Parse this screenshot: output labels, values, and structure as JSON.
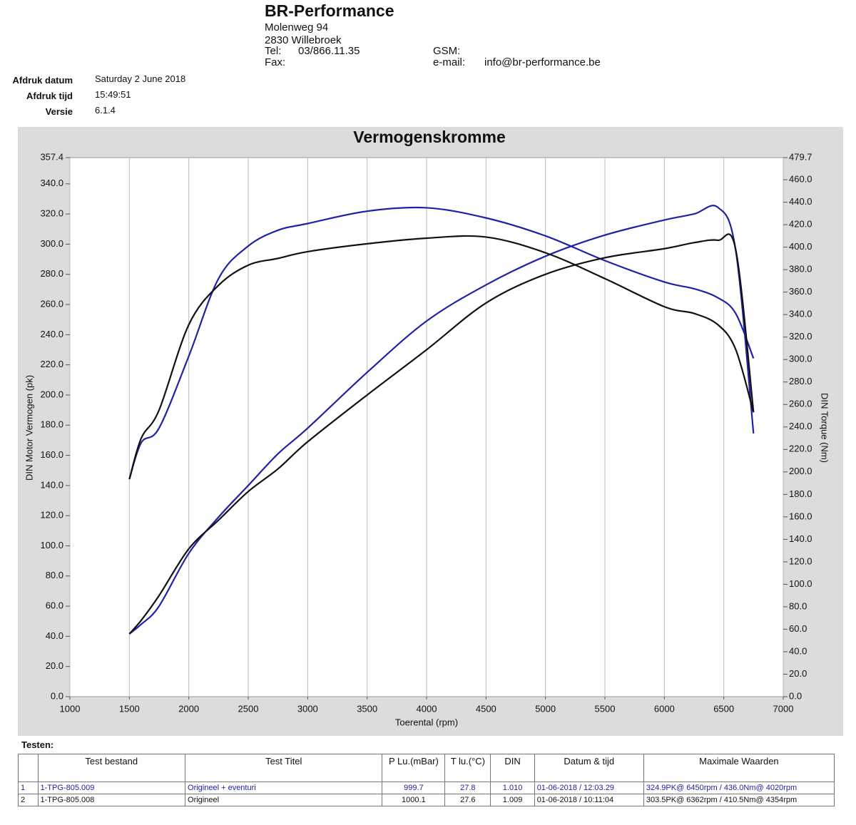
{
  "header": {
    "company": "BR-Performance",
    "street": "Molenweg 94",
    "city": "2830 Willebroek",
    "tel_label": "Tel:",
    "tel": "03/866.11.35",
    "fax_label": "Fax:",
    "gsm_label": "GSM:",
    "email_label": "e-mail:",
    "email": "info@br-performance.be"
  },
  "meta": {
    "rows": [
      [
        "Afdruk datum",
        "Saturday 2 June 2018"
      ],
      [
        "Afdruk tijd",
        "15:49:51"
      ],
      [
        "Versie",
        "6.1.4"
      ]
    ]
  },
  "chart_data": {
    "type": "line",
    "title": "Vermogenskromme",
    "x_label": "Toerental (rpm)",
    "y_label": "DIN Motor Vermogen (pk)",
    "y2_label": "DIN Torque (Nm)",
    "grid": "x",
    "xlim": [
      1000,
      7000
    ],
    "xticks": [
      1000,
      1500,
      2000,
      2500,
      3000,
      3500,
      4000,
      4500,
      5000,
      5500,
      6000,
      6500,
      7000
    ],
    "ylim": [
      0,
      357.4
    ],
    "yticks": [
      {
        "value": 0,
        "label": "0.0"
      },
      {
        "value": 20,
        "label": "20.0"
      },
      {
        "value": 40,
        "label": "40.0"
      },
      {
        "value": 60,
        "label": "60.0"
      },
      {
        "value": 80,
        "label": "80.0"
      },
      {
        "value": 100,
        "label": "100.0"
      },
      {
        "value": 120,
        "label": "120.0"
      },
      {
        "value": 140,
        "label": "140.0"
      },
      {
        "value": 160,
        "label": "160.0"
      },
      {
        "value": 180,
        "label": "180.0"
      },
      {
        "value": 200,
        "label": "200.0"
      },
      {
        "value": 220,
        "label": "220.0"
      },
      {
        "value": 240,
        "label": "240.0"
      },
      {
        "value": 260,
        "label": "260.0"
      },
      {
        "value": 280,
        "label": "280.0"
      },
      {
        "value": 300,
        "label": "300.0"
      },
      {
        "value": 320,
        "label": "320.0"
      },
      {
        "value": 340,
        "label": "340.0"
      },
      357.4
    ],
    "y2lim": [
      0,
      479.7
    ],
    "y2ticks": [
      {
        "value": 0,
        "label": "0.0"
      },
      {
        "value": 20,
        "label": "20.0"
      },
      {
        "value": 40,
        "label": "40.0"
      },
      {
        "value": 60,
        "label": "60.0"
      },
      {
        "value": 80,
        "label": "80.0"
      },
      {
        "value": 100,
        "label": "100.0"
      },
      {
        "value": 120,
        "label": "120.0"
      },
      {
        "value": 140,
        "label": "140.0"
      },
      {
        "value": 160,
        "label": "160.0"
      },
      {
        "value": 180,
        "label": "180.0"
      },
      {
        "value": 200,
        "label": "200.0"
      },
      {
        "value": 220,
        "label": "220.0"
      },
      {
        "value": 240,
        "label": "240.0"
      },
      {
        "value": 260,
        "label": "260.0"
      },
      {
        "value": 280,
        "label": "280.0"
      },
      {
        "value": 300,
        "label": "300.0"
      },
      {
        "value": 320,
        "label": "320.0"
      },
      {
        "value": 340,
        "label": "340.0"
      },
      {
        "value": 360,
        "label": "360.0"
      },
      {
        "value": 380,
        "label": "380.0"
      },
      {
        "value": 400,
        "label": "400.0"
      },
      {
        "value": 420,
        "label": "420.0"
      },
      {
        "value": 440,
        "label": "440.0"
      },
      {
        "value": 460,
        "label": "460.0"
      },
      479.7
    ],
    "x": [
      1500,
      1600,
      1750,
      2000,
      2250,
      2500,
      2750,
      3000,
      3500,
      4000,
      4500,
      5000,
      5500,
      6000,
      6250,
      6450,
      6600,
      6750
    ],
    "series": [
      {
        "color": "#1f22a6",
        "values": [
          41.6,
          48,
          60,
          95,
          119,
          140,
          161,
          178,
          215,
          249,
          273,
          292,
          306,
          316,
          320,
          324.4,
          296,
          174.5
        ]
      },
      {
        "color": "#1f22a6",
        "axis": "y2",
        "values": [
          193.5,
          226,
          239,
          303,
          372,
          401,
          415,
          421,
          432,
          435,
          426,
          410,
          388,
          369,
          363,
          355,
          341,
          301
        ]
      },
      {
        "color": "#111111",
        "values": [
          41.6,
          50.6,
          67,
          98,
          117,
          136,
          151,
          169,
          200,
          230,
          261,
          280,
          291,
          297,
          301,
          302.6,
          296.5,
          188.6
        ]
      },
      {
        "color": "#111111",
        "axis": "y2",
        "values": [
          193.5,
          230,
          255,
          331,
          366,
          384,
          390,
          396,
          403,
          408,
          409,
          395,
          372,
          347,
          341,
          331,
          309,
          253
        ]
      }
    ]
  },
  "tests": {
    "label": "Testen:",
    "columns": [
      "Test bestand",
      "Test Titel",
      "P Lu.(mBar)",
      "T lu.(°C)",
      "DIN",
      "Datum & tijd",
      "Maximale Waarden"
    ],
    "rows": [
      [
        "1",
        "1-TPG-805.009",
        "Origineel + eventuri",
        "999.7",
        "27.8",
        "1.010",
        "01-06-2018 / 12:03.29",
        "324.9PK@ 6450rpm / 436.0Nm@ 4020rpm"
      ],
      [
        "2",
        "1-TPG-805.008",
        "Origineel",
        "1000.1",
        "27.6",
        "1.009",
        "01-06-2018 / 10:11:04",
        "303.5PK@ 6362rpm / 410.5Nm@ 4354rpm"
      ]
    ]
  }
}
